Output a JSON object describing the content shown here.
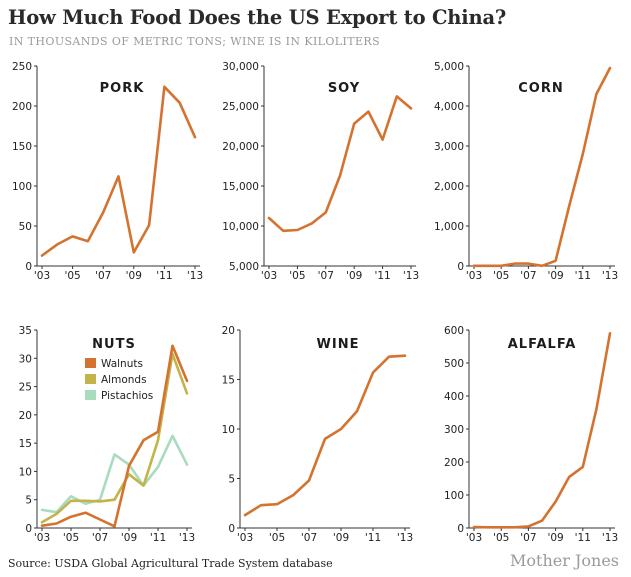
{
  "header": {
    "title": "How Much Food Does the US Export to China?",
    "subtitle": "IN THOUSANDS OF METRIC TONS; WINE IS IN KILOLITERS"
  },
  "footer": {
    "source_label": "Source:",
    "source_text": "USDA Global Agricultural Trade System database",
    "logo": "Mother Jones"
  },
  "colors": {
    "orange": "#d4732f",
    "olive": "#c3b34a",
    "green": "#a9dcbe",
    "axis": "#333333"
  },
  "chart_data": [
    {
      "type": "line",
      "title": "PORK",
      "x": [
        2003,
        2004,
        2005,
        2006,
        2007,
        2008,
        2009,
        2010,
        2011,
        2012,
        2013
      ],
      "xticks": [
        "'03",
        "'05",
        "'07",
        "'09",
        "'11",
        "'13"
      ],
      "xtick_values": [
        2003,
        2005,
        2007,
        2009,
        2011,
        2013
      ],
      "ylim": [
        0,
        250
      ],
      "yticks": [
        0,
        50,
        100,
        150,
        200,
        250
      ],
      "ytick_labels": [
        "0",
        "50",
        "100",
        "150",
        "200",
        "250"
      ],
      "series": [
        {
          "values": [
            13,
            27,
            37,
            31,
            67,
            112,
            17,
            51,
            224,
            204,
            161
          ],
          "color": "#d4732f"
        }
      ]
    },
    {
      "type": "line",
      "title": "SOY",
      "x": [
        2003,
        2004,
        2005,
        2006,
        2007,
        2008,
        2009,
        2010,
        2011,
        2012,
        2013
      ],
      "xticks": [
        "'03",
        "'05",
        "'07",
        "'09",
        "'11",
        "'13"
      ],
      "xtick_values": [
        2003,
        2005,
        2007,
        2009,
        2011,
        2013
      ],
      "ylim": [
        5000,
        30000
      ],
      "yticks": [
        5000,
        10000,
        15000,
        20000,
        25000,
        30000
      ],
      "ytick_labels": [
        "5,000",
        "10,000",
        "15,000",
        "20,000",
        "25,000",
        "30,000"
      ],
      "series": [
        {
          "values": [
            11000,
            9400,
            9500,
            10300,
            11700,
            16300,
            22800,
            24300,
            20800,
            26200,
            24700
          ],
          "color": "#d4732f"
        }
      ]
    },
    {
      "type": "line",
      "title": "CORN",
      "x": [
        2003,
        2004,
        2005,
        2006,
        2007,
        2008,
        2009,
        2010,
        2011,
        2012,
        2013
      ],
      "xticks": [
        "'03",
        "'05",
        "'07",
        "'09",
        "'11",
        "'13"
      ],
      "xtick_values": [
        2003,
        2005,
        2007,
        2009,
        2011,
        2013
      ],
      "ylim": [
        0,
        5000
      ],
      "yticks": [
        0,
        1000,
        2000,
        3000,
        4000,
        5000
      ],
      "ytick_labels": [
        "0",
        "1,000",
        "2,000",
        "3,000",
        "4,000",
        "5,000"
      ],
      "series": [
        {
          "values": [
            5,
            5,
            5,
            60,
            60,
            5,
            130,
            1500,
            2800,
            4300,
            4950
          ],
          "color": "#d4732f"
        }
      ]
    },
    {
      "type": "line",
      "title": "NUTS",
      "x": [
        2003,
        2004,
        2005,
        2006,
        2007,
        2008,
        2009,
        2010,
        2011,
        2012,
        2013
      ],
      "xticks": [
        "'03",
        "'05",
        "'07",
        "'09",
        "'11",
        "'13"
      ],
      "xtick_values": [
        2003,
        2005,
        2007,
        2009,
        2011,
        2013
      ],
      "ylim": [
        0,
        35
      ],
      "yticks": [
        0,
        5,
        10,
        15,
        20,
        25,
        30,
        35
      ],
      "ytick_labels": [
        "0",
        "5",
        "10",
        "15",
        "20",
        "25",
        "30",
        "35"
      ],
      "legend": {
        "position": "top-left"
      },
      "series": [
        {
          "name": "Pistachios",
          "values": [
            3.2,
            2.8,
            5.6,
            4.3,
            5.0,
            13.0,
            11.2,
            7.5,
            10.8,
            16.3,
            11.2
          ],
          "color": "#a9dcbe"
        },
        {
          "name": "Almonds",
          "values": [
            1.0,
            2.5,
            4.8,
            4.8,
            4.7,
            5.0,
            9.5,
            7.5,
            15.5,
            30.8,
            23.8
          ],
          "color": "#c3b34a"
        },
        {
          "name": "Walnuts",
          "values": [
            0.4,
            0.8,
            2.0,
            2.7,
            1.5,
            0.3,
            11.0,
            15.5,
            17.0,
            32.2,
            26.0
          ],
          "color": "#d4732f"
        }
      ]
    },
    {
      "type": "line",
      "title": "WINE",
      "x": [
        2003,
        2004,
        2005,
        2006,
        2007,
        2008,
        2009,
        2010,
        2011,
        2012,
        2013
      ],
      "xticks": [
        "'03",
        "'05",
        "'07",
        "'09",
        "'11",
        "'13"
      ],
      "xtick_values": [
        2003,
        2005,
        2007,
        2009,
        2011,
        2013
      ],
      "ylim": [
        0,
        20
      ],
      "yticks": [
        0,
        5,
        10,
        15,
        20
      ],
      "ytick_labels": [
        "0",
        "5",
        "10",
        "15",
        "20"
      ],
      "series": [
        {
          "values": [
            1.3,
            2.3,
            2.4,
            3.3,
            4.8,
            9.0,
            10.0,
            11.8,
            15.7,
            17.3,
            17.4
          ],
          "color": "#d4732f"
        }
      ]
    },
    {
      "type": "line",
      "title": "ALFALFA",
      "x": [
        2003,
        2004,
        2005,
        2006,
        2007,
        2008,
        2009,
        2010,
        2011,
        2012,
        2013
      ],
      "xticks": [
        "'03",
        "'05",
        "'07",
        "'09",
        "'11",
        "'13"
      ],
      "xtick_values": [
        2003,
        2005,
        2007,
        2009,
        2011,
        2013
      ],
      "ylim": [
        0,
        600
      ],
      "yticks": [
        0,
        100,
        200,
        300,
        400,
        500,
        600
      ],
      "ytick_labels": [
        "0",
        "100",
        "200",
        "300",
        "400",
        "500",
        "600"
      ],
      "series": [
        {
          "values": [
            3,
            2,
            2,
            2,
            5,
            22,
            80,
            155,
            185,
            360,
            590
          ],
          "color": "#d4732f"
        }
      ]
    }
  ]
}
